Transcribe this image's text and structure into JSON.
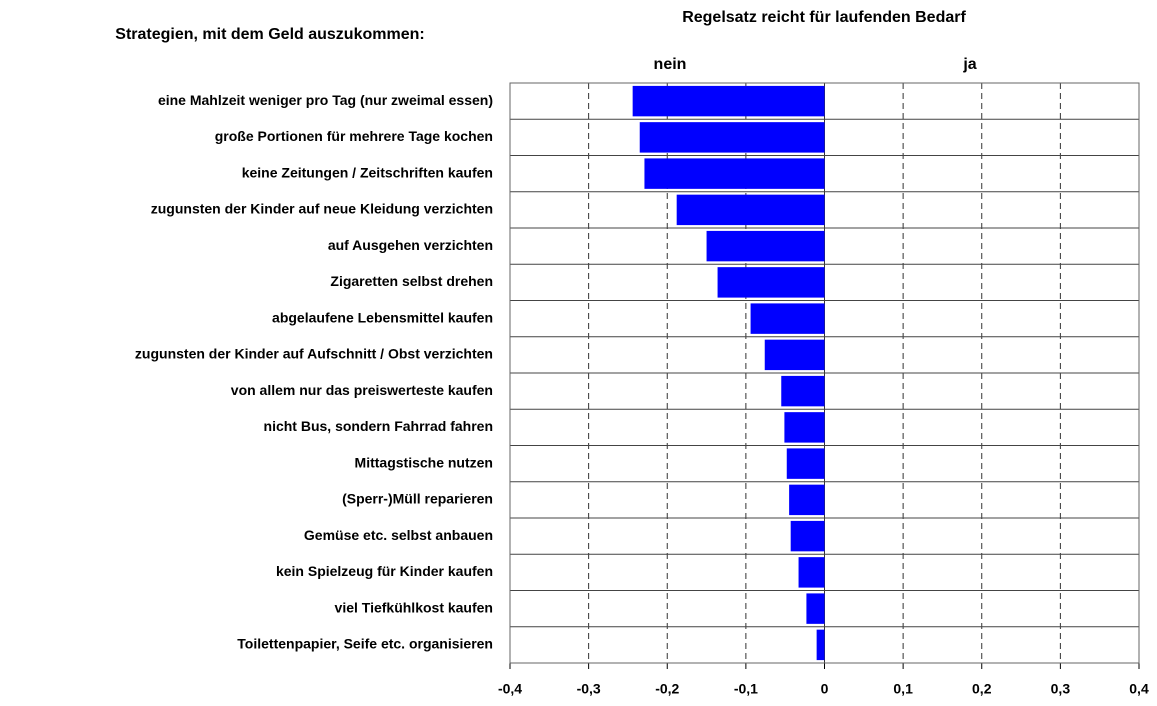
{
  "chart_data": {
    "type": "hbar",
    "title": "Regelsatz reicht für laufenden Bedarf",
    "category_axis_title": "Strategien, mit dem Geld auszukommen:",
    "annotations": [
      "nein",
      "ja"
    ],
    "categories": [
      "eine Mahlzeit weniger pro Tag (nur zweimal essen)",
      "große Portionen für mehrere Tage kochen",
      "keine Zeitungen / Zeitschriften kaufen",
      "zugunsten der Kinder auf neue Kleidung verzichten",
      "auf Ausgehen verzichten",
      "Zigaretten selbst drehen",
      "abgelaufene Lebensmittel kaufen",
      "zugunsten der Kinder auf Aufschnitt / Obst verzichten",
      "von allem nur das preiswerteste kaufen",
      "nicht Bus, sondern Fahrrad fahren",
      "Mittagstische nutzen",
      "(Sperr-)Müll reparieren",
      "Gemüse etc. selbst anbauen",
      "kein Spielzeug für Kinder kaufen",
      "viel Tiefkühlkost kaufen",
      "Toilettenpapier, Seife etc. organisieren"
    ],
    "values": [
      -0.244,
      -0.235,
      -0.229,
      -0.188,
      -0.15,
      -0.136,
      -0.094,
      -0.076,
      -0.055,
      -0.051,
      -0.048,
      -0.045,
      -0.043,
      -0.033,
      -0.023,
      -0.01
    ],
    "color": "#0000ff",
    "xlim": [
      -0.4,
      0.4
    ],
    "xticks": [
      {
        "value": -0.4,
        "label": "-0,4"
      },
      {
        "value": -0.3,
        "label": "-0,3"
      },
      {
        "value": -0.2,
        "label": "-0,2"
      },
      {
        "value": -0.1,
        "label": "-0,1"
      },
      0,
      {
        "value": 0.1,
        "label": "0,1"
      },
      {
        "value": 0.2,
        "label": "0,2"
      },
      {
        "value": 0.3,
        "label": "0,3"
      },
      {
        "value": 0.4,
        "label": "0,4"
      }
    ],
    "grid": true
  }
}
